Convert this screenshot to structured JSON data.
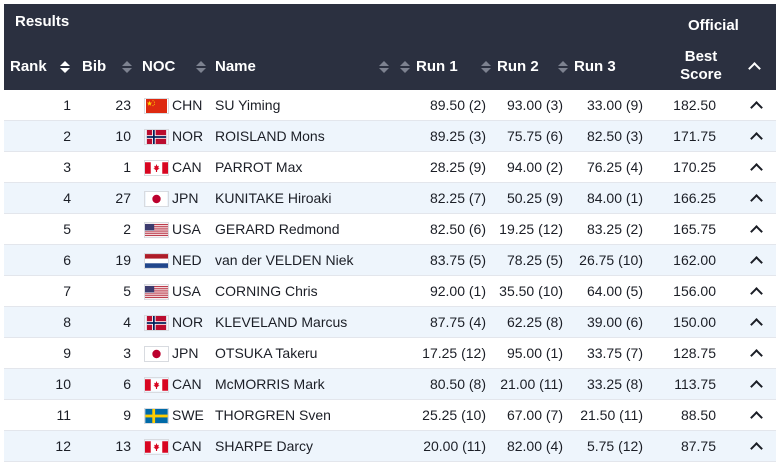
{
  "header": {
    "results_label": "Results",
    "official_label": "Official",
    "columns": {
      "rank": "Rank",
      "bib": "Bib",
      "noc": "NOC",
      "name": "Name",
      "run1": "Run 1",
      "run2": "Run 2",
      "run3": "Run 3",
      "best_line1": "Best",
      "best_line2": "Score"
    }
  },
  "colors": {
    "header_bg": "#2b3040",
    "alt_row_bg": "#eef5fc"
  },
  "rows": [
    {
      "rank": "1",
      "bib": "23",
      "noc": "CHN",
      "name": "SU Yiming",
      "run1": "89.50 (2)",
      "run2": "93.00 (3)",
      "run3": "33.00 (9)",
      "best": "182.50"
    },
    {
      "rank": "2",
      "bib": "10",
      "noc": "NOR",
      "name": "ROISLAND Mons",
      "run1": "89.25 (3)",
      "run2": "75.75 (6)",
      "run3": "82.50 (3)",
      "best": "171.75"
    },
    {
      "rank": "3",
      "bib": "1",
      "noc": "CAN",
      "name": "PARROT Max",
      "run1": "28.25 (9)",
      "run2": "94.00 (2)",
      "run3": "76.25 (4)",
      "best": "170.25"
    },
    {
      "rank": "4",
      "bib": "27",
      "noc": "JPN",
      "name": "KUNITAKE Hiroaki",
      "run1": "82.25 (7)",
      "run2": "50.25 (9)",
      "run3": "84.00 (1)",
      "best": "166.25"
    },
    {
      "rank": "5",
      "bib": "2",
      "noc": "USA",
      "name": "GERARD Redmond",
      "run1": "82.50 (6)",
      "run2": "19.25 (12)",
      "run3": "83.25 (2)",
      "best": "165.75"
    },
    {
      "rank": "6",
      "bib": "19",
      "noc": "NED",
      "name": "van der VELDEN Niek",
      "run1": "83.75 (5)",
      "run2": "78.25 (5)",
      "run3": "26.75 (10)",
      "best": "162.00"
    },
    {
      "rank": "7",
      "bib": "5",
      "noc": "USA",
      "name": "CORNING Chris",
      "run1": "92.00 (1)",
      "run2": "35.50 (10)",
      "run3": "64.00 (5)",
      "best": "156.00"
    },
    {
      "rank": "8",
      "bib": "4",
      "noc": "NOR",
      "name": "KLEVELAND Marcus",
      "run1": "87.75 (4)",
      "run2": "62.25 (8)",
      "run3": "39.00 (6)",
      "best": "150.00"
    },
    {
      "rank": "9",
      "bib": "3",
      "noc": "JPN",
      "name": "OTSUKA Takeru",
      "run1": "17.25 (12)",
      "run2": "95.00 (1)",
      "run3": "33.75 (7)",
      "best": "128.75"
    },
    {
      "rank": "10",
      "bib": "6",
      "noc": "CAN",
      "name": "McMORRIS Mark",
      "run1": "80.50 (8)",
      "run2": "21.00 (11)",
      "run3": "33.25 (8)",
      "best": "113.75"
    },
    {
      "rank": "11",
      "bib": "9",
      "noc": "SWE",
      "name": "THORGREN Sven",
      "run1": "25.25 (10)",
      "run2": "67.00 (7)",
      "run3": "21.50 (11)",
      "best": "88.50"
    },
    {
      "rank": "12",
      "bib": "13",
      "noc": "CAN",
      "name": "SHARPE Darcy",
      "run1": "20.00 (11)",
      "run2": "82.00 (4)",
      "run3": "5.75 (12)",
      "best": "87.75"
    }
  ]
}
